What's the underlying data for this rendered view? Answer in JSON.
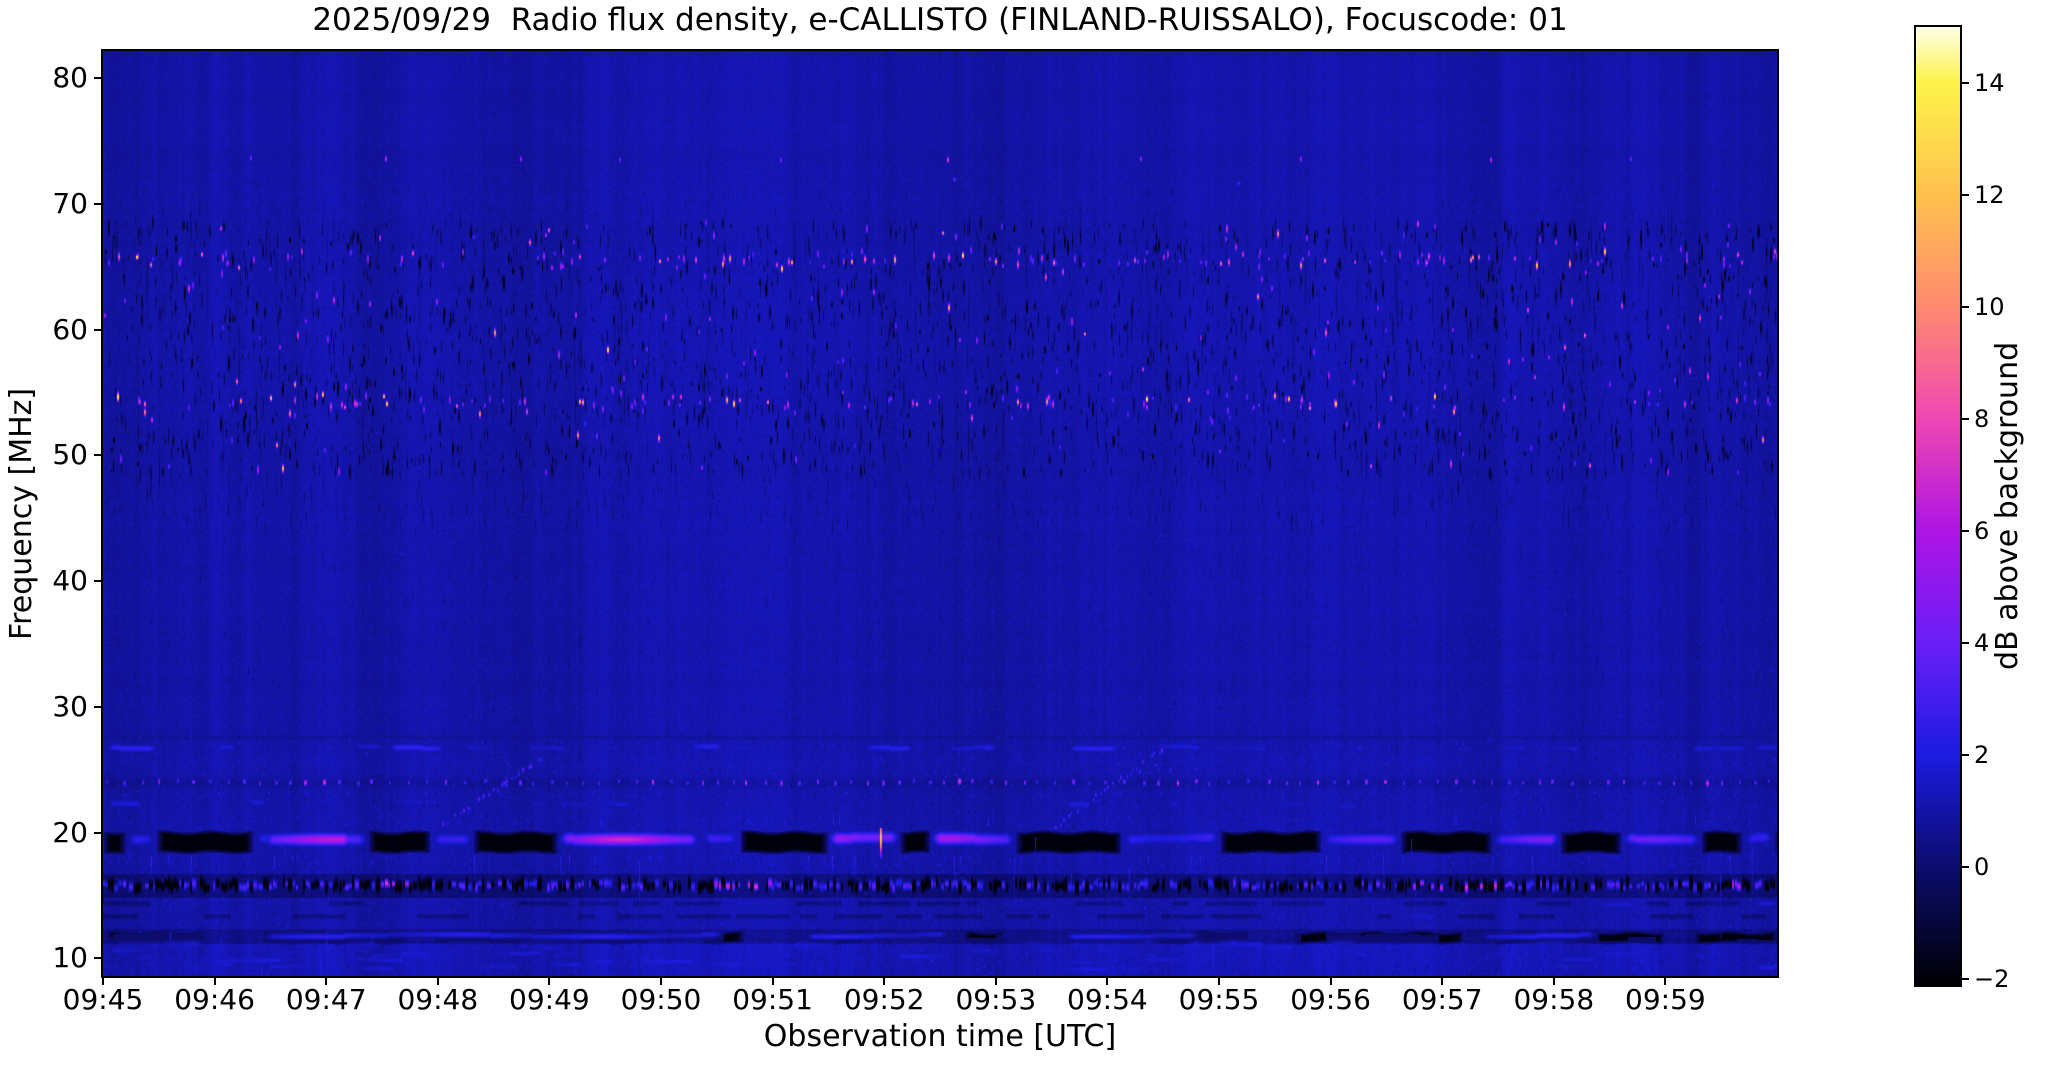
{
  "title": "2025/09/29  Radio flux density, e-CALLISTO (FINLAND-RUISSALO), Focuscode: 01",
  "axes": {
    "xlabel": "Observation time [UTC]",
    "ylabel": "Frequency [MHz]",
    "x_ticks": [
      "09:45",
      "09:46",
      "09:47",
      "09:48",
      "09:49",
      "09:50",
      "09:51",
      "09:52",
      "09:53",
      "09:54",
      "09:55",
      "09:56",
      "09:57",
      "09:58",
      "09:59"
    ],
    "y_ticks": [
      80,
      70,
      60,
      50,
      40,
      30,
      20,
      10
    ]
  },
  "colorbar": {
    "label": "dB above background",
    "tick_values": [
      14,
      12,
      10,
      8,
      6,
      4,
      2,
      0,
      -2
    ],
    "tick_labels": [
      "14",
      "12",
      "10",
      "8",
      "6",
      "4",
      "2",
      "0",
      "−2"
    ],
    "vmin": -2.1,
    "vmax": 15.0,
    "stops": [
      [
        0,
        "#000004"
      ],
      [
        0.123,
        "#0c0c6e"
      ],
      [
        0.24,
        "#1c1ce0"
      ],
      [
        0.357,
        "#6a1ef8"
      ],
      [
        0.474,
        "#ae14e4"
      ],
      [
        0.591,
        "#ef48b2"
      ],
      [
        0.708,
        "#ff8a70"
      ],
      [
        0.825,
        "#ffc14e"
      ],
      [
        0.942,
        "#fdf34a"
      ],
      [
        1,
        "#ffffe6"
      ]
    ]
  },
  "chart_data": {
    "type": "heatmap",
    "title": "2025/09/29  Radio flux density, e-CALLISTO (FINLAND-RUISSALO), Focuscode: 01",
    "date": "2025/09/29",
    "station": "FINLAND-RUISSALO",
    "focuscode": "01",
    "xlabel": "Observation time [UTC]",
    "ylabel": "Frequency [MHz]",
    "x_start": "09:45",
    "x_end": "10:00",
    "x_tick_interval_min": 1,
    "duration_min": 15,
    "y_range_mhz": [
      8.6,
      82.15
    ],
    "value_unit": "dB above background",
    "value_range": [
      -2.1,
      15.0
    ],
    "background_level_db": 1.0,
    "seed": 20250929,
    "features": {
      "base_db": 1.02,
      "speckle_zone": {
        "f": [
          48.5,
          68.5
        ],
        "dense_rows_f": [
          65.6,
          54.2
        ],
        "bright_count": 430,
        "dark_count": 2600,
        "long_streak_count": 250,
        "below_tail_count": 300
      },
      "high_dots": {
        "f": 73.6,
        "points": [
          [
            1.32,
            5
          ],
          [
            2.53,
            7
          ],
          [
            3.74,
            6
          ],
          [
            4.63,
            4.5
          ],
          [
            6.07,
            5
          ],
          [
            7.57,
            8
          ],
          [
            9.3,
            5.5
          ],
          [
            10.73,
            6
          ],
          [
            12.43,
            7
          ],
          [
            13.69,
            4.5
          ]
        ],
        "extra": [
          [
            10.17,
            71.6,
            3.0
          ],
          [
            7.62,
            71.9,
            3.5
          ]
        ]
      },
      "dark_line": {
        "f": 27.6,
        "depth": 0.55
      },
      "blue_dash_row": {
        "f": 26.8,
        "v": 2.1
      },
      "dotted_row": {
        "f": 24.0,
        "spacing_px": 16,
        "v_main": 3.0,
        "v_bright": 6.4
      },
      "faint_dot_row": {
        "f": 23.1,
        "v": 2.0
      },
      "smudge_row": {
        "f": 22.3,
        "v": 1.8
      },
      "main_band": {
        "f": [
          18.3,
          20.5
        ],
        "streak_f": 19.55,
        "bright_segments": [
          [
            0.2,
            0.48,
            3.0
          ],
          [
            1.34,
            2.38,
            3.5
          ],
          [
            1.43,
            2.24,
            6.5
          ],
          [
            2.93,
            3.32,
            4.5
          ],
          [
            4.07,
            5.35,
            7.0
          ],
          [
            5.35,
            5.71,
            3.0
          ],
          [
            6.49,
            7.14,
            6.8
          ],
          [
            7.41,
            8.18,
            5.8
          ],
          [
            9.12,
            10.01,
            3.4
          ],
          [
            10.91,
            11.63,
            3.6
          ],
          [
            12.44,
            13.06,
            4.6
          ],
          [
            13.6,
            14.32,
            4.0
          ],
          [
            14.68,
            14.98,
            2.6
          ]
        ],
        "yellow_spike": {
          "t": 6.97,
          "v": 13
        },
        "black_blobs": [
          [
            0,
            0.2
          ],
          [
            0.48,
            1.34
          ],
          [
            2.38,
            2.93
          ],
          [
            3.32,
            4.07
          ],
          [
            5.71,
            6.49
          ],
          [
            7.14,
            7.41
          ],
          [
            8.18,
            9.12
          ],
          [
            10.01,
            10.91
          ],
          [
            11.63,
            12.44
          ],
          [
            13.06,
            13.6
          ],
          [
            14.32,
            14.68
          ],
          [
            14.98,
            15
          ]
        ]
      },
      "spike_count_below_band": 45,
      "mottled_band": {
        "f": [
          14.9,
          16.7
        ],
        "magenta_clusters": [
          [
            2.47,
            2.73
          ],
          [
            5.33,
            5.96
          ],
          [
            11.61,
            12.59
          ],
          [
            14.48,
            14.75
          ]
        ]
      },
      "patch_rows": {
        "f": [
          12.8,
          14.7
        ]
      },
      "dark_band": {
        "f": [
          11.2,
          12.3
        ],
        "blue_line_f": 11.85,
        "blue_segments": [
          [
            1.43,
            5.56
          ],
          [
            6.28,
            7.58
          ],
          [
            8.61,
            9.82
          ],
          [
            12.33,
            13.4
          ]
        ],
        "black_blobs": [
          [
            0.03,
            0.9
          ],
          [
            1.43,
            2.7
          ],
          [
            2.96,
            3.77
          ],
          [
            4.26,
            4.89
          ],
          [
            5.38,
            5.74
          ],
          [
            6.37,
            6.81
          ],
          [
            7.71,
            8.07
          ],
          [
            9.46,
            10.26
          ],
          [
            10.67,
            12.19
          ],
          [
            12.46,
            12.91
          ],
          [
            13.18,
            13.99
          ],
          [
            14.25,
            15
          ]
        ]
      },
      "haze": {
        "f": [
          8.6,
          11.2
        ],
        "boost": 0.3
      },
      "diagonals": [
        {
          "t": [
            3.05,
            3.94
          ],
          "f": [
            20.7,
            25.9
          ]
        },
        {
          "t": [
            8.53,
            9.5
          ],
          "f": [
            20.5,
            26.7
          ]
        }
      ]
    }
  }
}
